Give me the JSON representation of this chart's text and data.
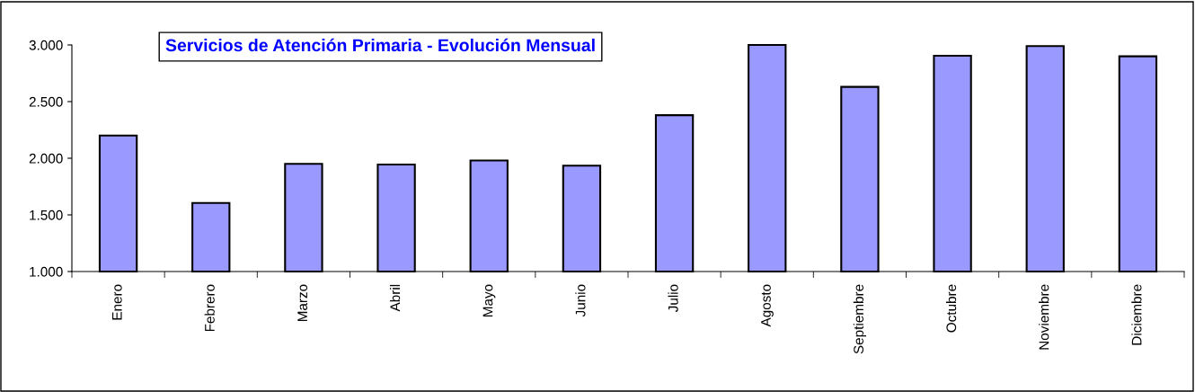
{
  "chart_data": {
    "type": "bar",
    "title": "Servicios de Atención Primaria - Evolución Mensual",
    "categories": [
      "Enero",
      "Febrero",
      "Marzo",
      "Abril",
      "Mayo",
      "Junio",
      "Julio",
      "Agosto",
      "Septiembre",
      "Octubre",
      "Noviembre",
      "Diciembre"
    ],
    "values": [
      2200,
      1605,
      1950,
      1945,
      1980,
      1935,
      2380,
      3000,
      2630,
      2905,
      2990,
      2900
    ],
    "color": "#9999ff",
    "ylim": [
      1000,
      3000
    ],
    "yticks": [
      {
        "value": 1000,
        "label": "1.000"
      },
      {
        "value": 1500,
        "label": "1.500"
      },
      {
        "value": 2000,
        "label": "2.000"
      },
      {
        "value": 2500,
        "label": "2.500"
      },
      {
        "value": 3000,
        "label": "3.000"
      }
    ],
    "grid": false,
    "legend": false
  }
}
